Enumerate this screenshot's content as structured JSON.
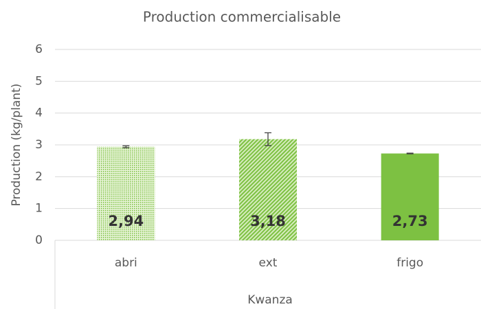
{
  "chart_data": {
    "type": "bar",
    "title": "Production commercialisable",
    "ylabel": "Production (kg/plant)",
    "xlabel": "Kwanza",
    "categories": [
      "abri",
      "ext",
      "frigo"
    ],
    "values": [
      2.94,
      3.18,
      2.73
    ],
    "value_labels": [
      "2,94",
      "3,18",
      "2,73"
    ],
    "errors": [
      0.03,
      0.2,
      0.01
    ],
    "color": "#7dc142",
    "patterns": [
      "dots",
      "diagonal",
      "solid"
    ],
    "ylim": [
      0,
      6
    ],
    "yticks": [
      0,
      1,
      2,
      3,
      4,
      5,
      6
    ],
    "grid": true
  }
}
